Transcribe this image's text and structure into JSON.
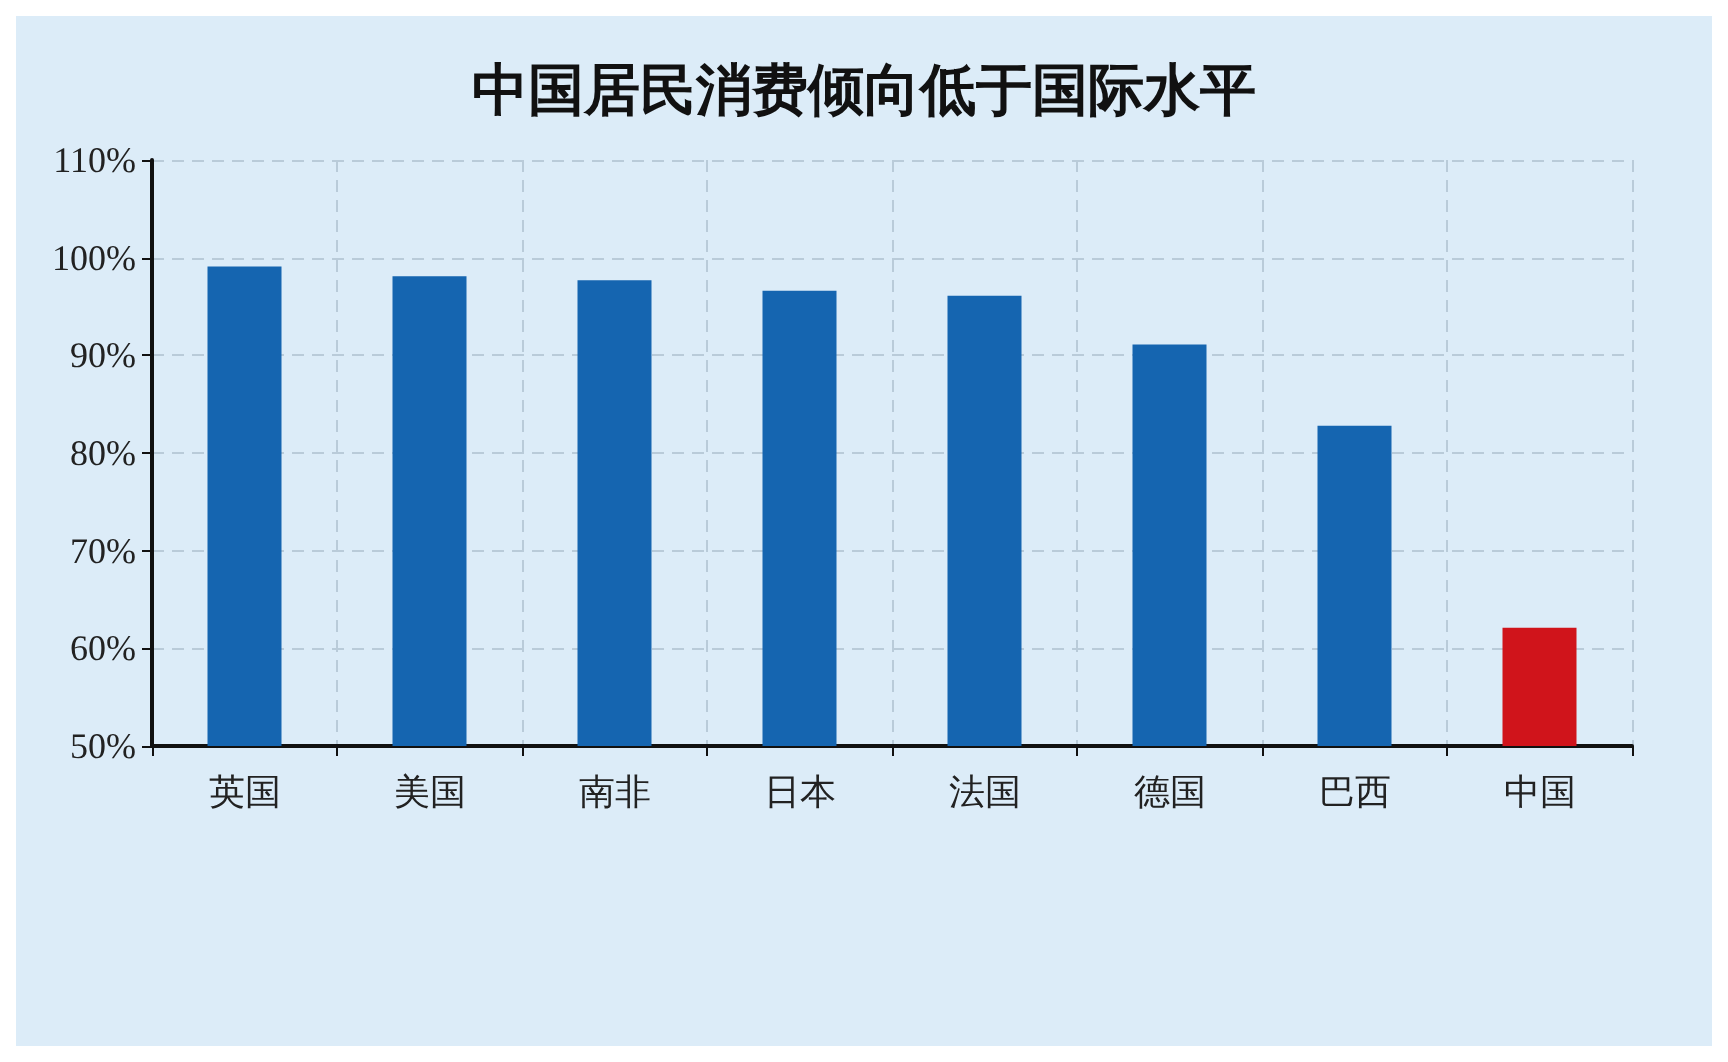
{
  "chart_data": {
    "type": "bar",
    "title": "中国居民消费倾向低于国际水平",
    "categories": [
      "英国",
      "美国",
      "南非",
      "日本",
      "法国",
      "德国",
      "巴西",
      "中国"
    ],
    "values": [
      99.1,
      98.1,
      97.7,
      96.6,
      96.1,
      91.1,
      82.8,
      62.1
    ],
    "colors": [
      "#1565b0",
      "#1565b0",
      "#1565b0",
      "#1565b0",
      "#1565b0",
      "#1565b0",
      "#1565b0",
      "#d0141b"
    ],
    "ylim": [
      50,
      110
    ],
    "yticks": [
      {
        "value": 50,
        "label": "50%"
      },
      {
        "value": 60,
        "label": "60%"
      },
      {
        "value": 70,
        "label": "70%"
      },
      {
        "value": 80,
        "label": "80%"
      },
      {
        "value": 90,
        "label": "90%"
      },
      {
        "value": 100,
        "label": "100%"
      },
      {
        "value": 110,
        "label": "110%"
      }
    ],
    "grid": true
  }
}
